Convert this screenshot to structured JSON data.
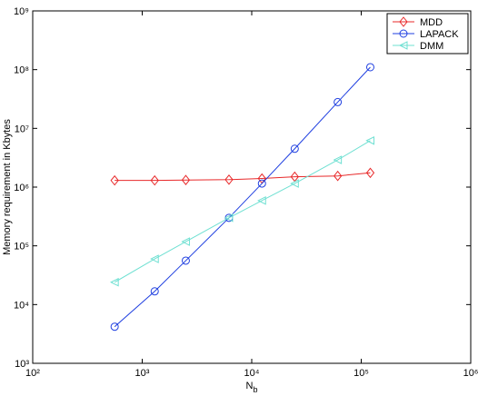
{
  "chart_data": {
    "type": "line",
    "x_label": "Nb",
    "y_label": "Memory requirement in Kbytes",
    "x": [
      560,
      1300,
      2500,
      6200,
      12400,
      24700,
      61000,
      121000
    ],
    "series": [
      {
        "name": "MDD",
        "color": "#e8292a",
        "marker": "diamond",
        "values": [
          1300000,
          1300000,
          1320000,
          1340000,
          1400000,
          1500000,
          1550000,
          1750000
        ]
      },
      {
        "name": "LAPACK",
        "color": "#1f3fe0",
        "marker": "circle",
        "values": [
          4200,
          16800,
          56000,
          300000,
          1150000,
          4500000,
          28000000,
          110000000
        ]
      },
      {
        "name": "DMM",
        "color": "#6fe0d2",
        "marker": "triangle-left",
        "values": [
          24000,
          60000,
          118000,
          300000,
          590000,
          1150000,
          2900000,
          6200000
        ]
      }
    ],
    "x_log": true,
    "y_log": true,
    "xlim": [
      100,
      1000000
    ],
    "ylim": [
      1000,
      1000000000
    ],
    "xticks": [
      {
        "value": 100,
        "label": "10²"
      },
      {
        "value": 1000,
        "label": "10³"
      },
      {
        "value": 10000,
        "label": "10⁴"
      },
      {
        "value": 100000,
        "label": "10⁵"
      },
      {
        "value": 1000000,
        "label": "10⁶"
      }
    ],
    "yticks": [
      {
        "value": 1000,
        "label": "10³"
      },
      {
        "value": 10000,
        "label": "10⁴"
      },
      {
        "value": 100000,
        "label": "10⁵"
      },
      {
        "value": 1000000,
        "label": "10⁶"
      },
      {
        "value": 10000000,
        "label": "10⁷"
      },
      {
        "value": 100000000,
        "label": "10⁸"
      },
      {
        "value": 1000000000,
        "label": "10⁹"
      }
    ],
    "legend": "top-right"
  }
}
